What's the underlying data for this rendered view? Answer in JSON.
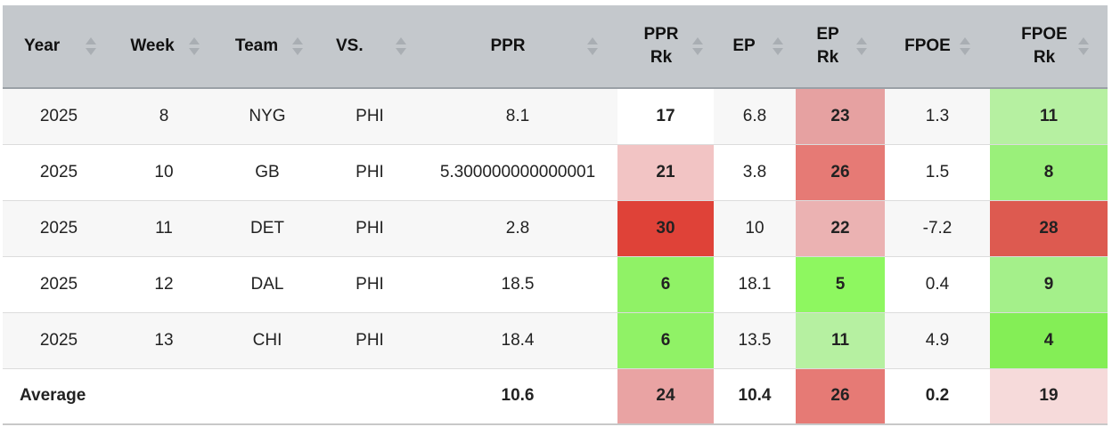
{
  "columns": [
    {
      "label": "Year"
    },
    {
      "label": "Week"
    },
    {
      "label": "Team"
    },
    {
      "label": "VS."
    },
    {
      "label": "PPR"
    },
    {
      "label": "PPR Rk"
    },
    {
      "label": "EP"
    },
    {
      "label": "EP Rk"
    },
    {
      "label": "FPOE"
    },
    {
      "label": "FPOE Rk"
    }
  ],
  "rows": [
    {
      "year": "2025",
      "week": "8",
      "team": "NYG",
      "vs": "PHI",
      "ppr": "8.1",
      "ppr_rk": "17",
      "ppr_rk_color": "#ffffff",
      "ep": "6.8",
      "ep_rk": "23",
      "ep_rk_color": "#e6a1a1",
      "fpoe": "1.3",
      "fpoe_rk": "11",
      "fpoe_rk_color": "#b6f0a1"
    },
    {
      "year": "2025",
      "week": "10",
      "team": "GB",
      "vs": "PHI",
      "ppr": "5.300000000000001",
      "ppr_rk": "21",
      "ppr_rk_color": "#f2c4c4",
      "ep": "3.8",
      "ep_rk": "26",
      "ep_rk_color": "#e67a75",
      "fpoe": "1.5",
      "fpoe_rk": "8",
      "fpoe_rk_color": "#9af07a"
    },
    {
      "year": "2025",
      "week": "11",
      "team": "DET",
      "vs": "PHI",
      "ppr": "2.8",
      "ppr_rk": "30",
      "ppr_rk_color": "#df4238",
      "ep": "10",
      "ep_rk": "22",
      "ep_rk_color": "#ebb2b2",
      "fpoe": "-7.2",
      "fpoe_rk": "28",
      "fpoe_rk_color": "#dd5a50"
    },
    {
      "year": "2025",
      "week": "12",
      "team": "DAL",
      "vs": "PHI",
      "ppr": "18.5",
      "ppr_rk": "6",
      "ppr_rk_color": "#90f266",
      "ep": "18.1",
      "ep_rk": "5",
      "ep_rk_color": "#8ef760",
      "fpoe": "0.4",
      "fpoe_rk": "9",
      "fpoe_rk_color": "#a4f08a"
    },
    {
      "year": "2025",
      "week": "13",
      "team": "CHI",
      "vs": "PHI",
      "ppr": "18.4",
      "ppr_rk": "6",
      "ppr_rk_color": "#90f266",
      "ep": "13.5",
      "ep_rk": "11",
      "ep_rk_color": "#b6f0a1",
      "fpoe": "4.9",
      "fpoe_rk": "4",
      "fpoe_rk_color": "#84ee56"
    }
  ],
  "average": {
    "label": "Average",
    "ppr": "10.6",
    "ppr_rk": "24",
    "ppr_rk_color": "#e9a3a3",
    "ep": "10.4",
    "ep_rk": "26",
    "ep_rk_color": "#e67a75",
    "fpoe": "0.2",
    "fpoe_rk": "19",
    "fpoe_rk_color": "#f6dada"
  },
  "colors": {
    "header_bg": "#c4c8cc",
    "row_alt_bg": "#f7f7f7",
    "sort_arrow": "#a9aeb3"
  },
  "icons": {
    "sort": "sort-arrows-icon"
  }
}
